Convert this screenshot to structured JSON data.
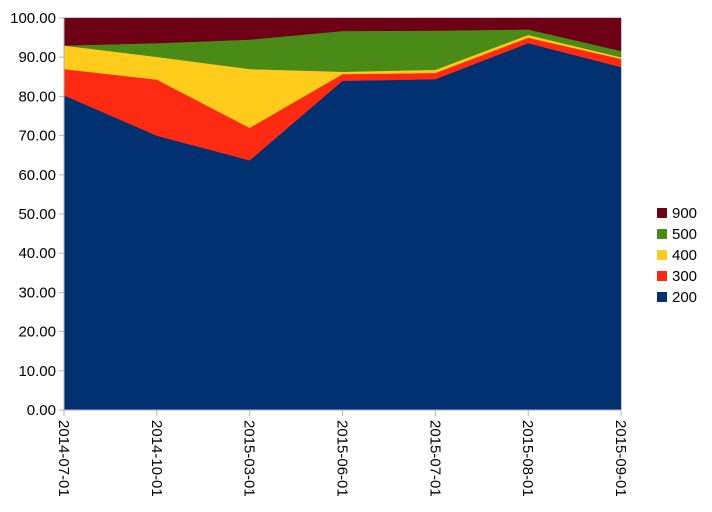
{
  "chart_data": {
    "type": "area",
    "stacked": true,
    "title": "",
    "xlabel": "",
    "ylabel": "",
    "ylim": [
      0,
      100
    ],
    "ytick_step": 10,
    "ytick_labels": [
      "0.00",
      "10.00",
      "20.00",
      "30.00",
      "40.00",
      "50.00",
      "60.00",
      "70.00",
      "80.00",
      "90.00",
      "100.00"
    ],
    "categories": [
      "2014-07-01",
      "2014-10-01",
      "2015-03-01",
      "2015-06-01",
      "2015-07-01",
      "2015-08-01",
      "2015-09-01"
    ],
    "grid": false,
    "legend_position": "right",
    "series": [
      {
        "name": "200",
        "color": "#003070",
        "values": [
          80.3,
          70.0,
          63.7,
          84.0,
          84.4,
          93.6,
          87.5
        ]
      },
      {
        "name": "300",
        "color": "#ff2a12",
        "values": [
          6.7,
          14.3,
          8.3,
          1.7,
          1.6,
          1.4,
          2.1
        ]
      },
      {
        "name": "400",
        "color": "#ffcc1c",
        "values": [
          6.0,
          5.8,
          15.0,
          0.6,
          0.8,
          0.7,
          0.4
        ]
      },
      {
        "name": "500",
        "color": "#4a8a16",
        "values": [
          0.0,
          3.5,
          7.5,
          10.4,
          10.0,
          1.4,
          1.6
        ]
      },
      {
        "name": "900",
        "color": "#6e0016",
        "values": [
          7.0,
          6.4,
          5.5,
          3.3,
          3.2,
          2.9,
          8.4
        ]
      }
    ],
    "legend_order": [
      "900",
      "500",
      "400",
      "300",
      "200"
    ]
  }
}
